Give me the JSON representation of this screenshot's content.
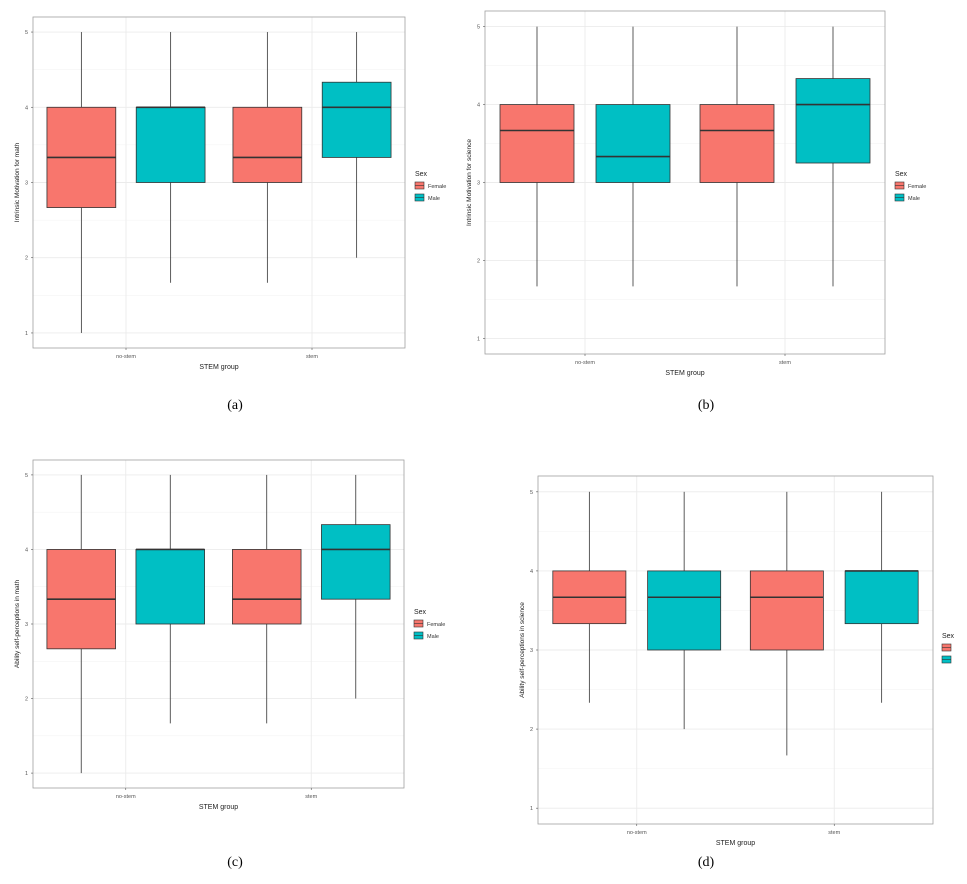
{
  "figure": {
    "captions": [
      "(a)",
      "(b)",
      "(c)",
      "(d)"
    ]
  },
  "legend": {
    "title": "Sex",
    "female_label": "Female",
    "male_label": "Male"
  },
  "colors": {
    "female": "#F8766D",
    "male": "#00BFC4",
    "grid": "#EBEBEB",
    "border": "#A0A0A0",
    "whisker": "#333333",
    "median": "#333333"
  },
  "chart_data": [
    {
      "type": "box",
      "caption": "(a)",
      "xlabel": "STEM group",
      "ylabel": "Intrinsic Motivation for math",
      "categories": [
        "no-stem",
        "stem"
      ],
      "yticks": [
        1,
        2,
        3,
        4,
        5
      ],
      "ylim": [
        0.8,
        5.2
      ],
      "legend": {
        "title": "Sex",
        "entries": [
          "Female",
          "Male"
        ],
        "placement": "right"
      },
      "boxes": [
        {
          "group": "no-stem",
          "sex": "Female",
          "min": 1,
          "q1": 2.667,
          "median": 3.333,
          "q3": 4,
          "max": 5
        },
        {
          "group": "no-stem",
          "sex": "Male",
          "min": 1.667,
          "q1": 3,
          "median": 4,
          "q3": 4,
          "max": 5
        },
        {
          "group": "stem",
          "sex": "Female",
          "min": 1.667,
          "q1": 3,
          "median": 3.333,
          "q3": 4,
          "max": 5
        },
        {
          "group": "stem",
          "sex": "Male",
          "min": 2,
          "q1": 3.333,
          "median": 4,
          "q3": 4.333,
          "max": 5
        }
      ]
    },
    {
      "type": "box",
      "caption": "(b)",
      "xlabel": "STEM group",
      "ylabel": "Intrinsic Motivation for science",
      "categories": [
        "no-stem",
        "stem"
      ],
      "yticks": [
        1,
        2,
        3,
        4,
        5
      ],
      "ylim": [
        0.8,
        5.2
      ],
      "legend": {
        "title": "Sex",
        "entries": [
          "Female",
          "Male"
        ],
        "placement": "right"
      },
      "boxes": [
        {
          "group": "no-stem",
          "sex": "Female",
          "min": 1.667,
          "q1": 3,
          "median": 3.667,
          "q3": 4,
          "max": 5
        },
        {
          "group": "no-stem",
          "sex": "Male",
          "min": 1.667,
          "q1": 3,
          "median": 3.333,
          "q3": 4,
          "max": 5
        },
        {
          "group": "stem",
          "sex": "Female",
          "min": 1.667,
          "q1": 3,
          "median": 3.667,
          "q3": 4,
          "max": 5
        },
        {
          "group": "stem",
          "sex": "Male",
          "min": 1.667,
          "q1": 3.25,
          "median": 4,
          "q3": 4.333,
          "max": 5
        }
      ]
    },
    {
      "type": "box",
      "caption": "(c)",
      "xlabel": "STEM group",
      "ylabel": "Ability self-perceptions in math",
      "categories": [
        "no-stem",
        "stem"
      ],
      "yticks": [
        1,
        2,
        3,
        4,
        5
      ],
      "ylim": [
        0.8,
        5.2
      ],
      "legend": {
        "title": "Sex",
        "entries": [
          "Female",
          "Male"
        ],
        "placement": "right"
      },
      "boxes": [
        {
          "group": "no-stem",
          "sex": "Female",
          "min": 1,
          "q1": 2.667,
          "median": 3.333,
          "q3": 4,
          "max": 5
        },
        {
          "group": "no-stem",
          "sex": "Male",
          "min": 1.667,
          "q1": 3,
          "median": 4,
          "q3": 4,
          "max": 5
        },
        {
          "group": "stem",
          "sex": "Female",
          "min": 1.667,
          "q1": 3,
          "median": 3.333,
          "q3": 4,
          "max": 5
        },
        {
          "group": "stem",
          "sex": "Male",
          "min": 2,
          "q1": 3.333,
          "median": 4,
          "q3": 4.333,
          "max": 5
        }
      ]
    },
    {
      "type": "box",
      "caption": "(d)",
      "xlabel": "STEM group",
      "ylabel": "Ability self-perceptions in science",
      "categories": [
        "no-stem",
        "stem"
      ],
      "yticks": [
        1,
        2,
        3,
        4,
        5
      ],
      "ylim": [
        0.8,
        5.2
      ],
      "legend": {
        "title": "Sex",
        "entries": [
          "",
          ""
        ],
        "placement": "right"
      },
      "boxes": [
        {
          "group": "no-stem",
          "sex": "Female",
          "min": 2.333,
          "q1": 3.333,
          "median": 3.667,
          "q3": 4,
          "max": 5
        },
        {
          "group": "no-stem",
          "sex": "Male",
          "min": 2,
          "q1": 3,
          "median": 3.667,
          "q3": 4,
          "max": 5
        },
        {
          "group": "stem",
          "sex": "Female",
          "min": 1.667,
          "q1": 3,
          "median": 3.667,
          "q3": 4,
          "max": 5
        },
        {
          "group": "stem",
          "sex": "Male",
          "min": 2.333,
          "q1": 3.333,
          "median": 4,
          "q3": 4,
          "max": 5
        }
      ]
    }
  ]
}
